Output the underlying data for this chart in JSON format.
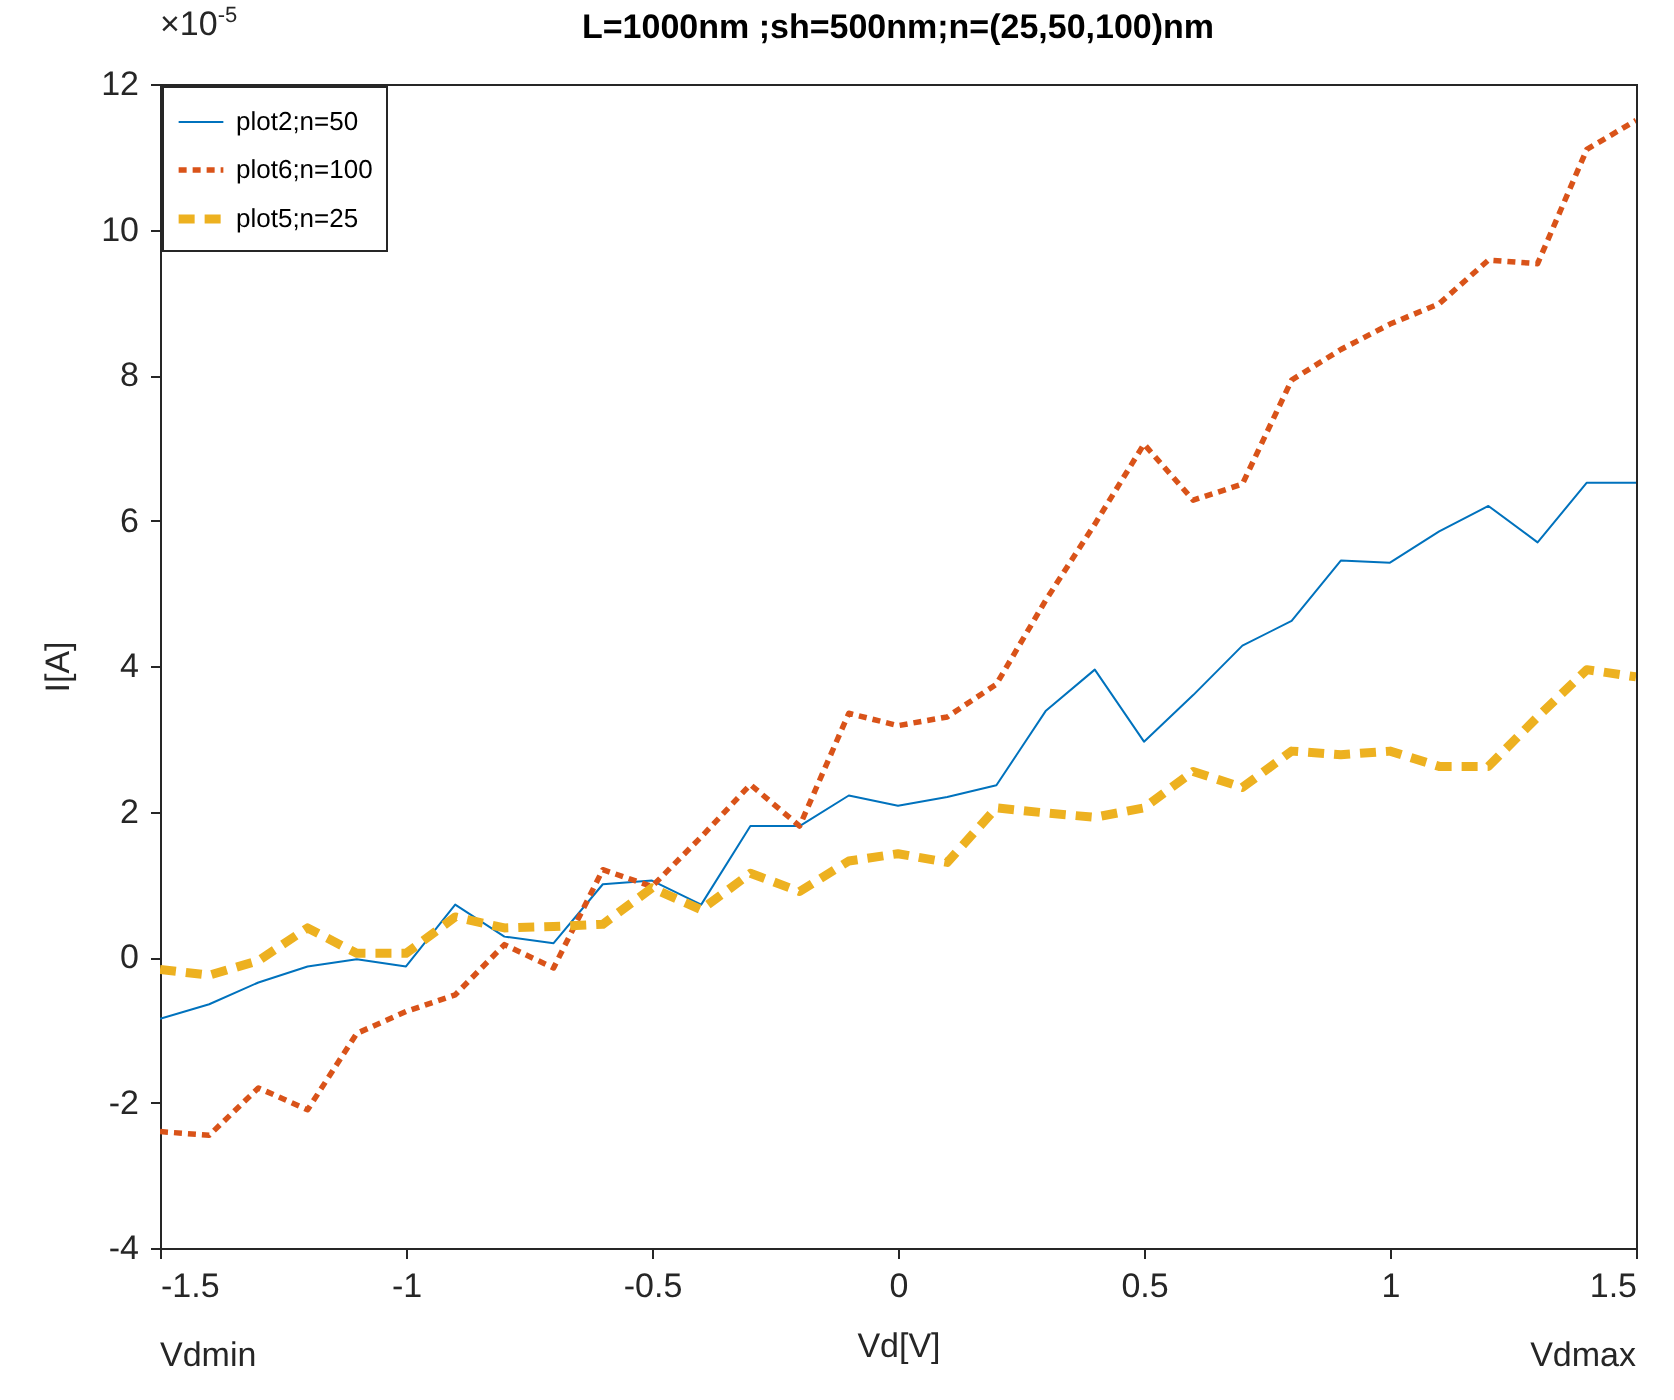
{
  "chart_data": {
    "type": "line",
    "title": "L=1000nm ;sh=500nm;n=(25,50,100)nm",
    "xlabel": "Vd[V]",
    "ylabel": "I[A]",
    "annotations": [
      "×10$^{-5}$",
      "Vdmin",
      "Vdmax"
    ],
    "x": [
      -1.5,
      -1.4,
      -1.3,
      -1.2,
      -1.1,
      -1.0,
      -0.9,
      -0.8,
      -0.7,
      -0.6,
      -0.5,
      -0.4,
      -0.3,
      -0.2,
      -0.1,
      0,
      0.1,
      0.2,
      0.3,
      0.4,
      0.5,
      0.6,
      0.7,
      0.8,
      0.9,
      1.0,
      1.1,
      1.2,
      1.3,
      1.4,
      1.5
    ],
    "series": [
      {
        "name": "plot2;n=50",
        "color": "#0072bd",
        "line_style": "solid",
        "values": [
          -0.85,
          -0.65,
          -0.35,
          -0.13,
          -0.03,
          -0.13,
          0.72,
          0.28,
          0.19,
          1.0,
          1.05,
          0.72,
          1.8,
          1.8,
          2.22,
          2.08,
          2.2,
          2.36,
          3.38,
          3.95,
          2.96,
          3.6,
          4.28,
          4.62,
          5.45,
          5.42,
          5.85,
          6.2,
          5.7,
          6.52,
          6.52
        ]
      },
      {
        "name": "plot6;n=100",
        "color": "#d95319",
        "line_style": "dotted",
        "values": [
          -2.4,
          -2.45,
          -1.8,
          -2.1,
          -1.05,
          -0.75,
          -0.52,
          0.17,
          -0.15,
          1.2,
          0.97,
          1.65,
          2.37,
          1.8,
          3.35,
          3.18,
          3.3,
          3.75,
          4.9,
          5.95,
          7.05,
          6.28,
          6.5,
          7.93,
          8.35,
          8.7,
          8.98,
          9.58,
          9.53,
          11.1,
          11.5
        ]
      },
      {
        "name": "plot5;n=25",
        "color": "#edb120",
        "line_style": "dashed",
        "values": [
          -0.17,
          -0.25,
          -0.05,
          0.4,
          0.05,
          0.05,
          0.55,
          0.4,
          0.42,
          0.45,
          0.95,
          0.65,
          1.15,
          0.9,
          1.32,
          1.42,
          1.3,
          2.05,
          1.98,
          1.92,
          2.05,
          2.55,
          2.33,
          2.83,
          2.78,
          2.83,
          2.62,
          2.62,
          3.3,
          3.95,
          3.85
        ]
      }
    ],
    "xlim": [
      -1.5,
      1.5
    ],
    "xticks": [
      -1.5,
      -1,
      -0.5,
      0,
      0.5,
      1,
      1.5
    ],
    "ylim": [
      -4,
      12
    ],
    "yticks": [
      -4,
      -2,
      0,
      2,
      4,
      6,
      8,
      10,
      12
    ],
    "grid": false,
    "legend": "top left"
  }
}
